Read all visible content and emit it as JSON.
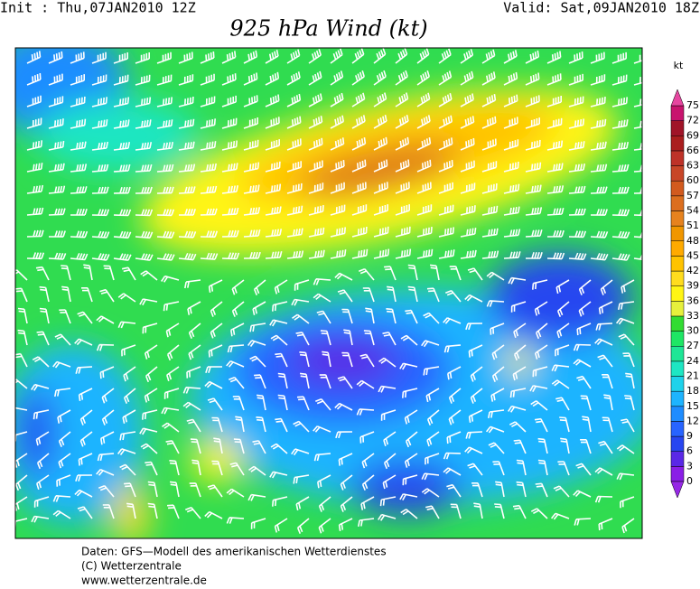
{
  "header": {
    "init": "Init : Thu,07JAN2010 12Z",
    "valid": "Valid: Sat,09JAN2010 18Z",
    "title": "925 hPa Wind (kt)"
  },
  "colorbar": {
    "unit": "kt",
    "ticks": [
      0,
      3,
      6,
      9,
      12,
      15,
      18,
      21,
      24,
      27,
      30,
      33,
      36,
      39,
      42,
      45,
      48,
      51,
      54,
      57,
      60,
      63,
      66,
      69,
      72,
      75
    ],
    "colors": [
      "#8a1ee6",
      "#5a28e6",
      "#2846f0",
      "#2864ff",
      "#1e8cff",
      "#1eb4ff",
      "#1ed2eb",
      "#1ee6c3",
      "#1ee696",
      "#1ee664",
      "#32dc32",
      "#e6f03c",
      "#fff514",
      "#ffdc1e",
      "#ffc300",
      "#ffaa00",
      "#f09600",
      "#e6821e",
      "#dc6e1e",
      "#d25a1e",
      "#c84628",
      "#be3228",
      "#aa1e1e",
      "#a01428",
      "#c8146e"
    ],
    "below_color": "#9628e6",
    "above_color": "#e646a0"
  },
  "footer": {
    "lines": [
      "Daten: GFS—Modell des amerikanischen Wetterdienstes",
      "(C) Wetterzentrale",
      "www.wetterzentrale.de"
    ]
  }
}
